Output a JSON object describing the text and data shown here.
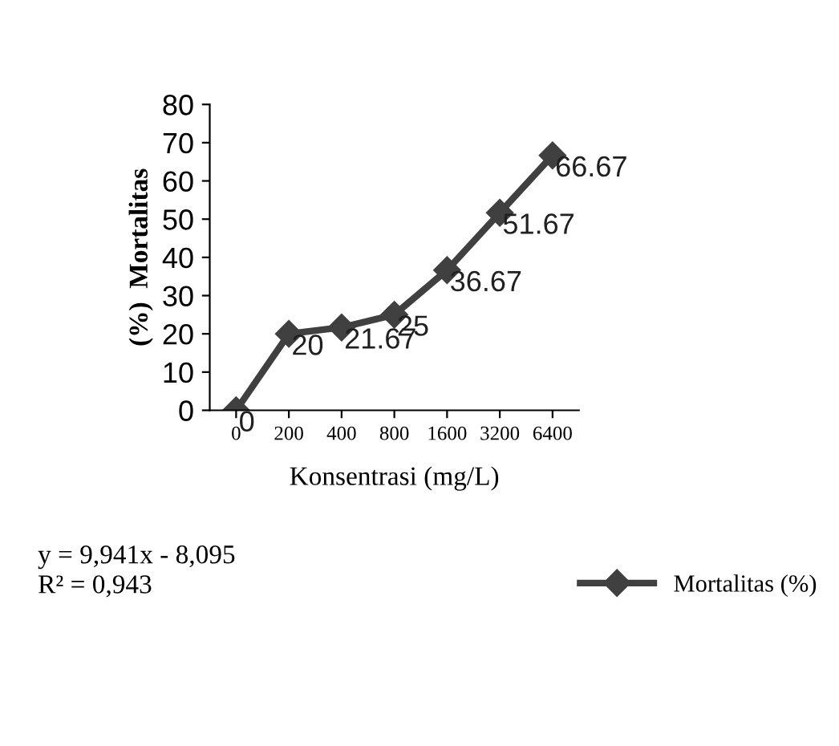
{
  "chart_data": {
    "type": "line",
    "xlabel": "Konsentrasi (mg/L)",
    "ylabel": "(%)  Mortalitas",
    "categories": [
      "0",
      "200",
      "400",
      "800",
      "1600",
      "3200",
      "6400"
    ],
    "series": [
      {
        "name": "Mortalitas (%)",
        "color": "#404040",
        "values": [
          0,
          20,
          21.67,
          25,
          36.67,
          51.67,
          66.67
        ]
      }
    ],
    "ylim": [
      0,
      80
    ],
    "yticks": [
      0,
      10,
      20,
      30,
      40,
      50,
      60,
      70,
      80
    ],
    "data_labels": true,
    "marker": "diamond",
    "line_style": "solid",
    "grid": false,
    "legend": "bottom right",
    "annotations": [
      "y = 9,941x - 8,095",
      "R² = 0,943"
    ]
  }
}
